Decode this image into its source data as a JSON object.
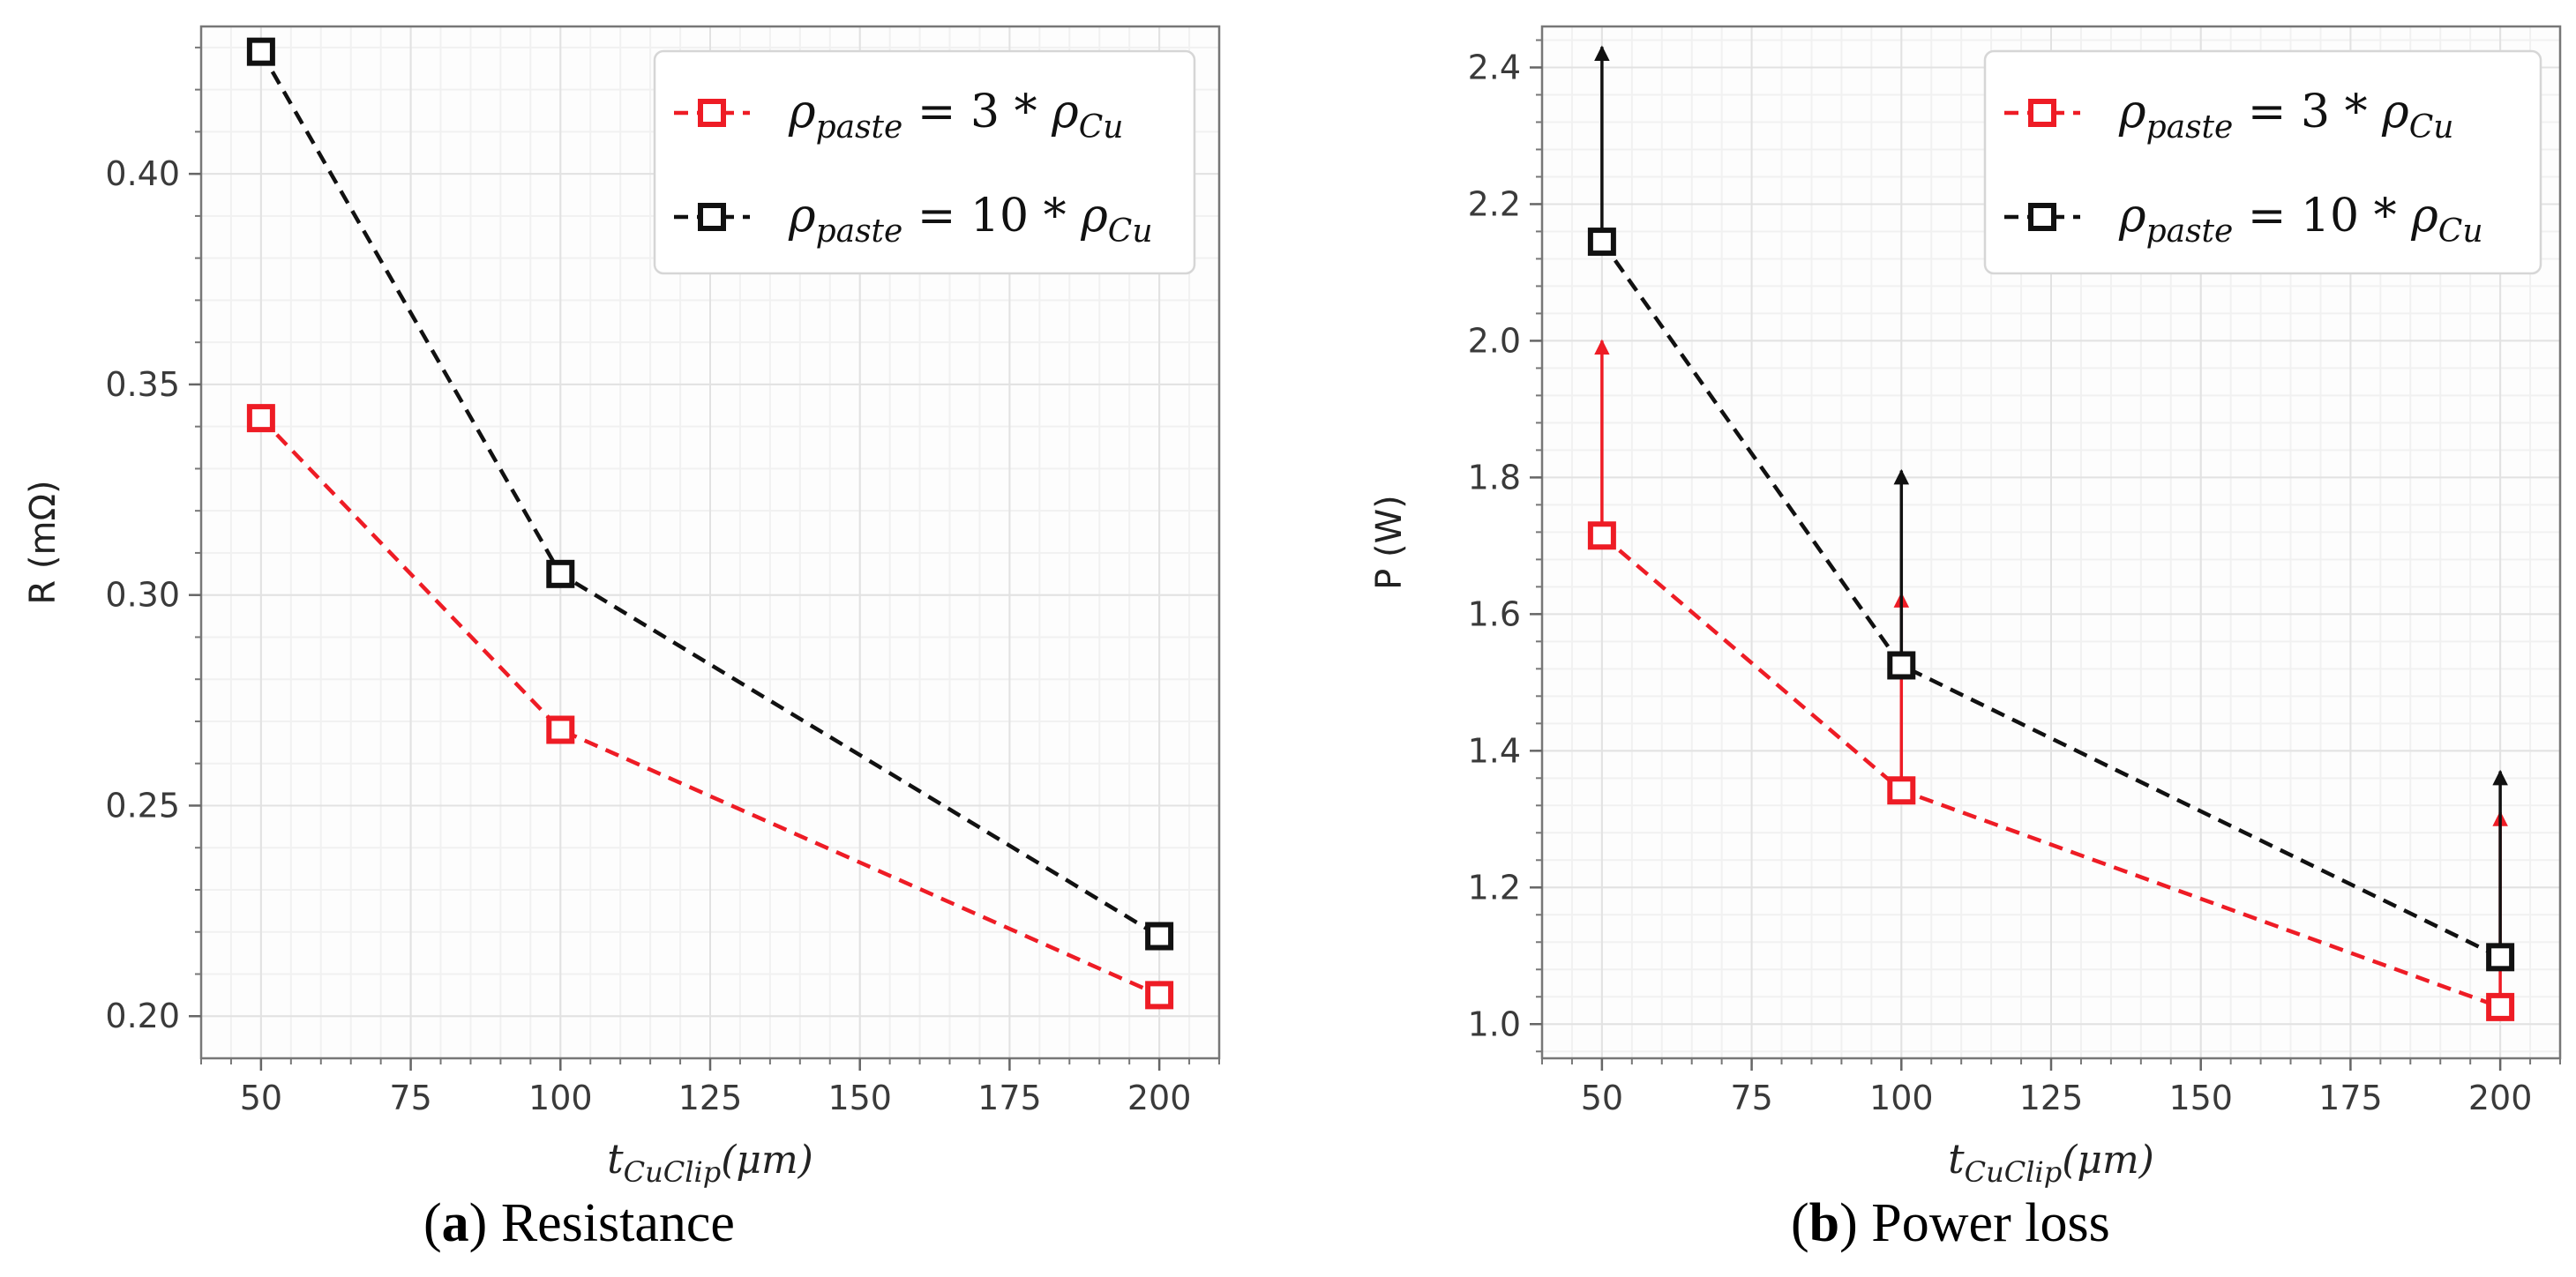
{
  "chart_data": [
    {
      "id": "a",
      "type": "line",
      "caption_letter": "a",
      "caption_text": "Resistance",
      "xlabel_base": "t",
      "xlabel_sub": "CuClip",
      "xlabel_unit": "(μm)",
      "ylabel": "R (mΩ)",
      "xlim": [
        40,
        210
      ],
      "ylim": [
        0.19,
        0.435
      ],
      "xticks": [
        50,
        75,
        100,
        125,
        150,
        175,
        200
      ],
      "yticks": [
        0.2,
        0.25,
        0.3,
        0.35,
        0.4
      ],
      "ytick_labels": [
        "0.20",
        "0.25",
        "0.30",
        "0.35",
        "0.40"
      ],
      "x": [
        50,
        100,
        200
      ],
      "series": [
        {
          "name": "ρpaste = 3 * ρCu",
          "rho": "ρ",
          "sub": "paste",
          "eq": " = 3 * ",
          "rho2": "ρ",
          "sub2": "Cu",
          "color": "#ee1c25",
          "values": [
            0.342,
            0.268,
            0.205
          ]
        },
        {
          "name": "ρpaste = 10 * ρCu",
          "rho": "ρ",
          "sub": "paste",
          "eq": " = 10 * ",
          "rho2": "ρ",
          "sub2": "Cu",
          "color": "#111111",
          "values": [
            0.429,
            0.305,
            0.219
          ]
        }
      ],
      "grid": true,
      "legend": "top-right"
    },
    {
      "id": "b",
      "type": "line",
      "caption_letter": "b",
      "caption_text": "Power loss",
      "xlabel_base": "t",
      "xlabel_sub": "CuClip",
      "xlabel_unit": "(μm)",
      "ylabel": "P (W)",
      "xlim": [
        40,
        210
      ],
      "ylim": [
        0.95,
        2.46
      ],
      "xticks": [
        50,
        75,
        100,
        125,
        150,
        175,
        200
      ],
      "yticks": [
        1.0,
        1.2,
        1.4,
        1.6,
        1.8,
        2.0,
        2.2,
        2.4
      ],
      "ytick_labels": [
        "1.0",
        "1.2",
        "1.4",
        "1.6",
        "1.8",
        "2.0",
        "2.2",
        "2.4"
      ],
      "x": [
        50,
        100,
        200
      ],
      "series": [
        {
          "name": "ρpaste = 3 * ρCu",
          "rho": "ρ",
          "sub": "paste",
          "eq": " = 3 * ",
          "rho2": "ρ",
          "sub2": "Cu",
          "color": "#ee1c25",
          "values": [
            1.715,
            1.342,
            1.025
          ],
          "arrow_to": [
            2.0,
            1.63,
            1.31
          ]
        },
        {
          "name": "ρpaste = 10 * ρCu",
          "rho": "ρ",
          "sub": "paste",
          "eq": " = 10 * ",
          "rho2": "ρ",
          "sub2": "Cu",
          "color": "#111111",
          "values": [
            2.145,
            1.525,
            1.098
          ],
          "arrow_to": [
            2.43,
            1.81,
            1.37
          ]
        }
      ],
      "grid": true,
      "legend": "top-right"
    }
  ]
}
